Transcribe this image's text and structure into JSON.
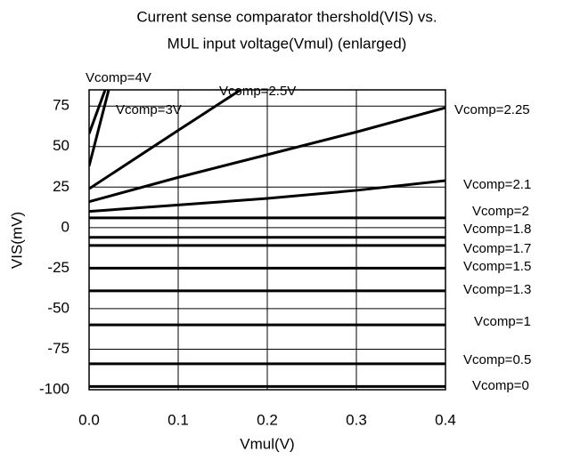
{
  "chart_data": {
    "type": "line",
    "title": [
      "Current sense comparator thershold(VIS) vs.",
      "MUL input voltage(Vmul) (enlarged)"
    ],
    "xlabel": "Vmul(V)",
    "ylabel": "VIS(mV)",
    "xlim": [
      0,
      0.4
    ],
    "ylim": [
      -100,
      85
    ],
    "xticks": [
      {
        "value": 0,
        "label": "0.0"
      },
      0.1,
      0.2,
      0.3,
      0.4
    ],
    "yticks": [
      75,
      50,
      25,
      0,
      -25,
      -50,
      -75,
      -100
    ],
    "grid": true,
    "series": [
      {
        "name": "Vcomp=4V",
        "color": "#000000",
        "x": [
          0,
          0.018
        ],
        "values": [
          58,
          85
        ]
      },
      {
        "name": "Vcomp=3V",
        "color": "#000000",
        "x": [
          0,
          0.022
        ],
        "values": [
          38,
          85
        ]
      },
      {
        "name": "Vcomp=2.5V",
        "color": "#000000",
        "x": [
          0,
          0.1,
          0.17
        ],
        "values": [
          24,
          60,
          85
        ]
      },
      {
        "name": "Vcomp=2.25",
        "color": "#000000",
        "x": [
          0,
          0.1,
          0.2,
          0.3,
          0.4
        ],
        "values": [
          16,
          31,
          45,
          59,
          74
        ]
      },
      {
        "name": "Vcomp=2.1",
        "color": "#000000",
        "x": [
          0,
          0.1,
          0.2,
          0.3,
          0.4
        ],
        "values": [
          10,
          14,
          18,
          23,
          29
        ]
      },
      {
        "name": "Vcomp=2",
        "color": "#000000",
        "x": [
          0,
          0.4
        ],
        "values": [
          6,
          6
        ]
      },
      {
        "name": "Vcomp=1.8",
        "color": "#000000",
        "x": [
          0,
          0.4
        ],
        "values": [
          -6,
          -6
        ]
      },
      {
        "name": "Vcomp=1.7",
        "color": "#000000",
        "x": [
          0,
          0.4
        ],
        "values": [
          -11,
          -11
        ]
      },
      {
        "name": "Vcomp=1.5",
        "color": "#000000",
        "x": [
          0,
          0.4
        ],
        "values": [
          -25,
          -25
        ]
      },
      {
        "name": "Vcomp=1.3",
        "color": "#000000",
        "x": [
          0,
          0.4
        ],
        "values": [
          -39,
          -39
        ]
      },
      {
        "name": "Vcomp=1",
        "color": "#000000",
        "x": [
          0,
          0.4
        ],
        "values": [
          -60,
          -60
        ]
      },
      {
        "name": "Vcomp=0.5",
        "color": "#000000",
        "x": [
          0,
          0.4
        ],
        "values": [
          -84,
          -84
        ]
      },
      {
        "name": "Vcomp=0",
        "color": "#000000",
        "x": [
          0,
          0.4
        ],
        "values": [
          -98,
          -98
        ]
      }
    ]
  }
}
